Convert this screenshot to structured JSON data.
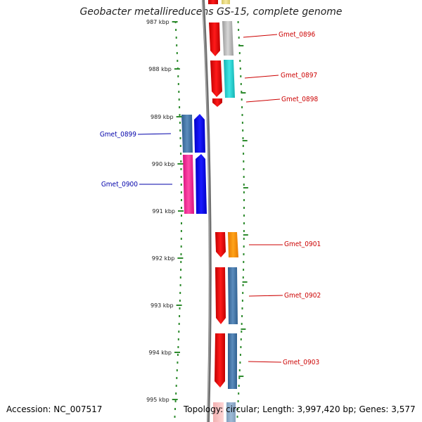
{
  "title": "Geobacter metallireducens GS-15, complete genome",
  "accession": "Accession: NC_007517",
  "topology": "Topology: circular; Length: 3,997,420 bp; Genes: 3,577",
  "colors": {
    "forward_label": "#cc0000",
    "reverse_label": "#0000aa",
    "ruler": "#2e8b2e"
  },
  "ruler_labels": [
    "987 kbp",
    "988 kbp",
    "989 kbp",
    "990 kbp",
    "991 kbp",
    "992 kbp",
    "993 kbp",
    "994 kbp",
    "995 kbp"
  ],
  "gene_labels": [
    {
      "id": "gmet-0896",
      "text": "Gmet_0896",
      "strand": "forward"
    },
    {
      "id": "gmet-0897",
      "text": "Gmet_0897",
      "strand": "forward"
    },
    {
      "id": "gmet-0898",
      "text": "Gmet_0898",
      "strand": "forward"
    },
    {
      "id": "gmet-0899",
      "text": "Gmet_0899",
      "strand": "reverse"
    },
    {
      "id": "gmet-0900",
      "text": "Gmet_0900",
      "strand": "reverse"
    },
    {
      "id": "gmet-0901",
      "text": "Gmet_0901",
      "strand": "forward"
    },
    {
      "id": "gmet-0902",
      "text": "Gmet_0902",
      "strand": "forward"
    },
    {
      "id": "gmet-0903",
      "text": "Gmet_0903",
      "strand": "forward"
    }
  ]
}
